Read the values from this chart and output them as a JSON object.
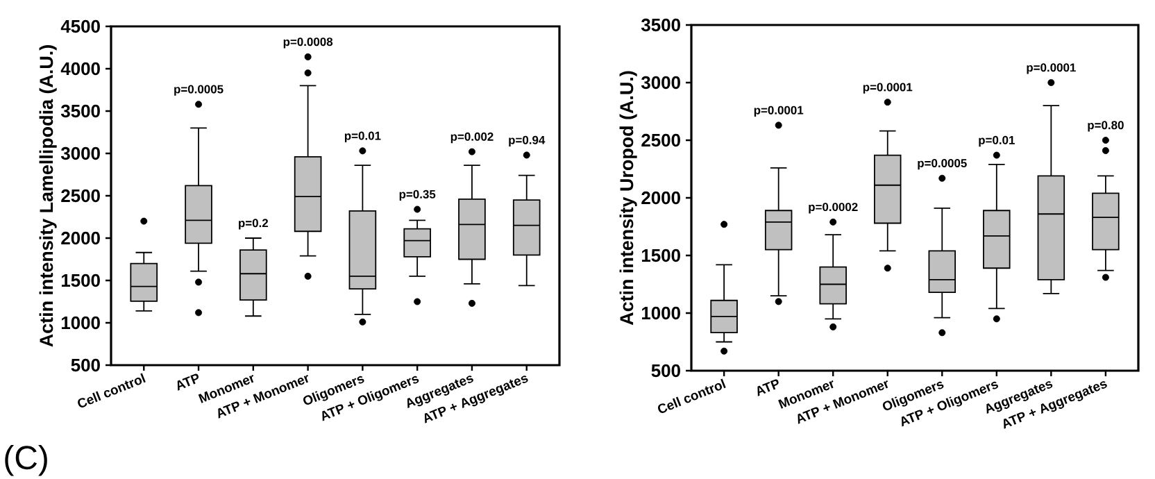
{
  "chart_data": [
    {
      "type": "box",
      "ylabel": "Actin intensity Lamellipodia (A.U.)",
      "categories": [
        "Cell control",
        "ATP",
        "Monomer",
        "ATP + Monomer",
        "Oligomers",
        "ATP + Oligomers",
        "Aggregates",
        "ATP + Aggregates"
      ],
      "series": [
        {
          "color": "#c0c0c0",
          "boxes": [
            {
              "low": 1140,
              "q1": 1255,
              "median": 1430,
              "q3": 1700,
              "high": 1830,
              "outliers": [
                2200
              ]
            },
            {
              "low": 1610,
              "q1": 1940,
              "median": 2210,
              "q3": 2620,
              "high": 3300,
              "outliers": [
                3580,
                1480,
                1120
              ]
            },
            {
              "low": 1080,
              "q1": 1270,
              "median": 1580,
              "q3": 1860,
              "high": 2000
            },
            {
              "low": 1790,
              "q1": 2080,
              "median": 2490,
              "q3": 2960,
              "high": 3800,
              "outliers": [
                4140,
                3950,
                1550
              ]
            },
            {
              "low": 1100,
              "q1": 1400,
              "median": 1550,
              "q3": 2320,
              "high": 2860,
              "outliers": [
                3030,
                1010
              ]
            },
            {
              "low": 1550,
              "q1": 1780,
              "median": 1970,
              "q3": 2110,
              "high": 2210,
              "outliers": [
                2340,
                1250
              ]
            },
            {
              "low": 1460,
              "q1": 1750,
              "median": 2160,
              "q3": 2460,
              "high": 2860,
              "outliers": [
                3020,
                1230
              ]
            },
            {
              "low": 1440,
              "q1": 1800,
              "median": 2150,
              "q3": 2450,
              "high": 2740,
              "outliers": [
                2980
              ]
            }
          ]
        }
      ],
      "ylim": [
        500,
        4500
      ],
      "yticks": [
        500,
        1000,
        1500,
        2000,
        2500,
        3000,
        3500,
        4000,
        4500
      ],
      "annotations": [
        "p=0.0005",
        "p=0.2",
        "p=0.0008",
        "p=0.01",
        "p=0.35",
        "p=0.002",
        "p=0.94",
        "(C)"
      ]
    },
    {
      "type": "box",
      "ylabel": "Actin intensity Uropod (A.U.)",
      "categories": [
        "Cell control",
        "ATP",
        "Monomer",
        "ATP + Monomer",
        "Oligomers",
        "ATP + Oligomers",
        "Aggregates",
        "ATP + Aggregates"
      ],
      "series": [
        {
          "color": "#c0c0c0",
          "boxes": [
            {
              "low": 750,
              "q1": 830,
              "median": 970,
              "q3": 1110,
              "high": 1420,
              "outliers": [
                1770,
                670
              ]
            },
            {
              "low": 1150,
              "q1": 1550,
              "median": 1790,
              "q3": 1890,
              "high": 2260,
              "outliers": [
                2630,
                1100
              ]
            },
            {
              "low": 950,
              "q1": 1080,
              "median": 1250,
              "q3": 1400,
              "high": 1680,
              "outliers": [
                1790,
                880
              ]
            },
            {
              "low": 1540,
              "q1": 1780,
              "median": 2110,
              "q3": 2370,
              "high": 2580,
              "outliers": [
                2830,
                1390
              ]
            },
            {
              "low": 960,
              "q1": 1180,
              "median": 1290,
              "q3": 1540,
              "high": 1910,
              "outliers": [
                2170,
                830
              ]
            },
            {
              "low": 1040,
              "q1": 1390,
              "median": 1670,
              "q3": 1890,
              "high": 2290,
              "outliers": [
                2370,
                950
              ]
            },
            {
              "low": 1170,
              "q1": 1290,
              "median": 1860,
              "q3": 2190,
              "high": 2800,
              "outliers": [
                3000
              ]
            },
            {
              "low": 1370,
              "q1": 1550,
              "median": 1830,
              "q3": 2040,
              "high": 2190,
              "outliers": [
                2500,
                2410,
                1310
              ]
            }
          ]
        }
      ],
      "ylim": [
        500,
        3500
      ],
      "yticks": [
        500,
        1000,
        1500,
        2000,
        2500,
        3000,
        3500
      ],
      "annotations": [
        "p=0.0001",
        "p=0.0002",
        "p=0.0001",
        "p=0.0005",
        "p=0.01",
        "p=0.0001",
        "p=0.80"
      ]
    }
  ]
}
